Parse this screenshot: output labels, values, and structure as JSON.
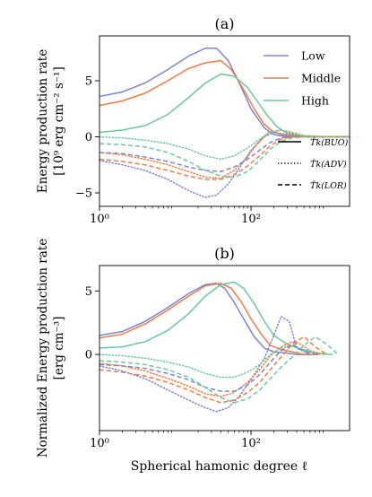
{
  "colors": {
    "low": "#7b86cf",
    "middle": "#ef7b45",
    "high": "#6cc89a"
  },
  "chart_data": [
    {
      "type": "line",
      "title": "(a)",
      "ylabel_line1": "Energy production rate",
      "ylabel_line2": "[10⁹ erg cm⁻² s⁻¹]",
      "xscale": "log",
      "xlim": [
        1,
        2000
      ],
      "ylim": [
        -6.2,
        9.0
      ],
      "xticks": [
        {
          "value": 1,
          "label": "10⁰"
        },
        {
          "value": 100,
          "label": "10²"
        }
      ],
      "yticks": [
        {
          "value": -5,
          "label": "−5"
        },
        {
          "value": 0,
          "label": "0"
        },
        {
          "value": 5,
          "label": "5"
        }
      ],
      "color_legend": {
        "position": "top-right",
        "entries": [
          "Low",
          "Middle",
          "High"
        ]
      },
      "style_legend": {
        "position": "right",
        "entries": [
          "T̂k(BUO)",
          "T̂k(ADV)",
          "T̂k(LOR)"
        ]
      },
      "series": [
        {
          "name": "Low",
          "group": "low",
          "style": "solid",
          "x": [
            1,
            2,
            4,
            8,
            15,
            25,
            35,
            50,
            70,
            100,
            150,
            200,
            300,
            500,
            1000,
            2000
          ],
          "y": [
            3.6,
            4.0,
            4.8,
            6.0,
            7.2,
            7.9,
            7.9,
            6.8,
            4.8,
            2.5,
            0.8,
            0.2,
            0.0,
            0.0,
            0.0,
            0.0
          ]
        },
        {
          "name": "Middle",
          "group": "middle",
          "style": "solid",
          "x": [
            1,
            2,
            4,
            8,
            15,
            25,
            40,
            55,
            80,
            110,
            150,
            200,
            300,
            500,
            1000,
            2000
          ],
          "y": [
            2.8,
            3.2,
            3.9,
            5.0,
            6.1,
            6.6,
            6.8,
            6.0,
            4.2,
            2.5,
            1.1,
            0.4,
            0.1,
            0.0,
            0.0,
            0.0
          ]
        },
        {
          "name": "High",
          "group": "high",
          "style": "solid",
          "x": [
            1,
            2,
            4,
            8,
            15,
            25,
            40,
            60,
            90,
            120,
            160,
            220,
            300,
            500,
            1000,
            2000
          ],
          "y": [
            0.4,
            0.6,
            1.0,
            2.0,
            3.5,
            4.8,
            5.6,
            5.4,
            4.4,
            3.2,
            2.0,
            0.9,
            0.3,
            0.0,
            0.0,
            0.0
          ]
        },
        {
          "group": "low",
          "style": "dotted",
          "x": [
            1,
            2,
            4,
            8,
            15,
            25,
            35,
            50,
            70,
            100,
            150,
            200,
            300,
            500,
            1000,
            2000
          ],
          "y": [
            -2.1,
            -2.5,
            -3.0,
            -3.8,
            -4.8,
            -5.4,
            -5.2,
            -4.2,
            -2.8,
            -1.2,
            0.0,
            0.4,
            0.2,
            0.0,
            0.0,
            0.0
          ]
        },
        {
          "group": "middle",
          "style": "dotted",
          "x": [
            1,
            2,
            4,
            8,
            15,
            25,
            40,
            60,
            90,
            120,
            170,
            250,
            350,
            500,
            1000,
            2000
          ],
          "y": [
            -1.4,
            -1.6,
            -2.0,
            -2.5,
            -3.1,
            -3.6,
            -3.7,
            -3.0,
            -1.8,
            -0.6,
            0.4,
            0.6,
            0.3,
            0.1,
            0.0,
            0.0
          ]
        },
        {
          "group": "high",
          "style": "dotted",
          "x": [
            1,
            2,
            4,
            8,
            15,
            25,
            40,
            60,
            90,
            130,
            180,
            250,
            350,
            500,
            1000,
            2000
          ],
          "y": [
            0.0,
            -0.1,
            -0.3,
            -0.6,
            -1.1,
            -1.7,
            -2.0,
            -1.7,
            -1.0,
            -0.2,
            0.4,
            0.6,
            0.4,
            0.1,
            0.0,
            0.0
          ]
        },
        {
          "group": "low",
          "style": "dashed",
          "x": [
            1,
            2,
            4,
            8,
            15,
            25,
            40,
            60,
            90,
            130,
            180,
            250,
            350,
            500,
            1000,
            2000
          ],
          "y": [
            -1.4,
            -1.5,
            -1.8,
            -2.2,
            -2.7,
            -3.0,
            -3.1,
            -2.7,
            -2.0,
            -1.2,
            -0.5,
            -0.1,
            0.0,
            0.0,
            0.0,
            0.0
          ]
        },
        {
          "group": "middle",
          "style": "dashed",
          "x": [
            1,
            2,
            4,
            8,
            15,
            25,
            40,
            60,
            90,
            130,
            180,
            250,
            350,
            500,
            1000,
            2000
          ],
          "y": [
            -2.0,
            -2.2,
            -2.5,
            -3.0,
            -3.5,
            -3.8,
            -3.8,
            -3.4,
            -2.6,
            -1.7,
            -0.8,
            -0.2,
            0.0,
            0.0,
            0.0,
            0.0
          ]
        },
        {
          "group": "high",
          "style": "dashed",
          "x": [
            1,
            2,
            4,
            8,
            15,
            25,
            40,
            60,
            90,
            130,
            180,
            250,
            350,
            500,
            1000,
            2000
          ],
          "y": [
            -0.6,
            -0.7,
            -0.9,
            -1.4,
            -2.2,
            -3.0,
            -3.5,
            -3.6,
            -3.1,
            -2.1,
            -1.1,
            -0.4,
            -0.1,
            0.0,
            0.0,
            0.0
          ]
        }
      ]
    },
    {
      "type": "line",
      "title": "(b)",
      "ylabel_line1": "Normalized Energy production rate",
      "ylabel_line2": "[erg cm⁻³]",
      "xlabel": "Spherical hamonic degree ℓ",
      "xscale": "log",
      "xlim": [
        1,
        2000
      ],
      "ylim": [
        -6.0,
        7.0
      ],
      "xticks": [
        {
          "value": 1,
          "label": "10⁰"
        },
        {
          "value": 100,
          "label": "10²"
        }
      ],
      "yticks": [
        {
          "value": 0,
          "label": "0"
        },
        {
          "value": 5,
          "label": "5"
        }
      ],
      "series": [
        {
          "name": "Low",
          "group": "low",
          "style": "solid",
          "x": [
            1,
            2,
            4,
            8,
            15,
            25,
            35,
            45,
            60,
            80,
            110,
            150,
            200,
            300,
            400,
            600
          ],
          "y": [
            1.5,
            1.8,
            2.6,
            3.7,
            4.8,
            5.5,
            5.6,
            5.2,
            4.1,
            2.8,
            1.4,
            0.5,
            0.2,
            0.1,
            0.0,
            0.0
          ]
        },
        {
          "name": "Middle",
          "group": "middle",
          "style": "solid",
          "x": [
            1,
            2,
            4,
            8,
            15,
            25,
            40,
            55,
            75,
            100,
            140,
            180,
            250,
            350,
            500,
            800
          ],
          "y": [
            1.3,
            1.6,
            2.4,
            3.5,
            4.6,
            5.4,
            5.6,
            5.2,
            4.1,
            2.8,
            1.5,
            0.7,
            0.4,
            0.2,
            0.0,
            0.0
          ]
        },
        {
          "name": "High",
          "group": "high",
          "style": "solid",
          "x": [
            1,
            2,
            4,
            8,
            15,
            25,
            40,
            60,
            80,
            110,
            150,
            200,
            300,
            450,
            700,
            1200
          ],
          "y": [
            0.5,
            0.6,
            1.0,
            1.9,
            3.2,
            4.6,
            5.5,
            5.7,
            5.2,
            4.0,
            2.6,
            1.5,
            0.8,
            0.4,
            0.1,
            0.0
          ]
        },
        {
          "group": "low",
          "style": "dotted",
          "x": [
            1,
            2,
            4,
            8,
            15,
            25,
            35,
            50,
            70,
            100,
            150,
            200,
            250,
            320,
            400,
            600
          ],
          "y": [
            -0.9,
            -1.3,
            -1.9,
            -2.8,
            -3.6,
            -4.2,
            -4.5,
            -4.2,
            -3.3,
            -2.0,
            -0.3,
            1.5,
            3.0,
            2.6,
            0.5,
            0.0
          ]
        },
        {
          "group": "middle",
          "style": "dotted",
          "x": [
            1,
            2,
            4,
            8,
            15,
            25,
            40,
            60,
            90,
            130,
            180,
            250,
            350,
            450,
            600,
            900
          ],
          "y": [
            -0.7,
            -0.9,
            -1.3,
            -1.9,
            -2.5,
            -3.1,
            -3.3,
            -3.0,
            -2.2,
            -1.2,
            -0.1,
            0.6,
            1.0,
            0.8,
            0.3,
            0.0
          ]
        },
        {
          "group": "high",
          "style": "dotted",
          "x": [
            1,
            2,
            4,
            8,
            15,
            25,
            40,
            60,
            90,
            130,
            180,
            250,
            350,
            500,
            700,
            1000
          ],
          "y": [
            0.0,
            -0.1,
            -0.3,
            -0.6,
            -1.0,
            -1.5,
            -1.8,
            -1.8,
            -1.4,
            -0.8,
            0.0,
            0.5,
            0.7,
            0.4,
            0.1,
            0.0
          ]
        },
        {
          "group": "low",
          "style": "dashed",
          "x": [
            1,
            2,
            4,
            8,
            15,
            25,
            40,
            60,
            90,
            130,
            180,
            250,
            350,
            450,
            600,
            800
          ],
          "y": [
            -0.8,
            -0.9,
            -1.1,
            -1.5,
            -2.0,
            -2.6,
            -2.9,
            -2.9,
            -2.4,
            -1.6,
            -0.6,
            0.3,
            0.8,
            0.4,
            0.1,
            0.0
          ]
        },
        {
          "group": "middle",
          "style": "dashed",
          "x": [
            1,
            2,
            4,
            8,
            15,
            25,
            40,
            60,
            90,
            130,
            180,
            250,
            350,
            500,
            700,
            1000
          ],
          "y": [
            -1.2,
            -1.4,
            -1.7,
            -2.2,
            -2.8,
            -3.4,
            -3.8,
            -3.6,
            -3.0,
            -2.2,
            -1.2,
            -0.2,
            0.8,
            1.4,
            0.6,
            0.0
          ]
        },
        {
          "group": "high",
          "style": "dashed",
          "x": [
            1,
            2,
            4,
            8,
            15,
            25,
            40,
            60,
            90,
            130,
            180,
            250,
            350,
            500,
            700,
            1000,
            1400
          ],
          "y": [
            -0.5,
            -0.6,
            -0.8,
            -1.2,
            -1.8,
            -2.6,
            -3.4,
            -3.8,
            -3.5,
            -2.8,
            -1.9,
            -1.0,
            -0.2,
            0.7,
            1.4,
            0.8,
            0.0
          ]
        }
      ]
    }
  ]
}
